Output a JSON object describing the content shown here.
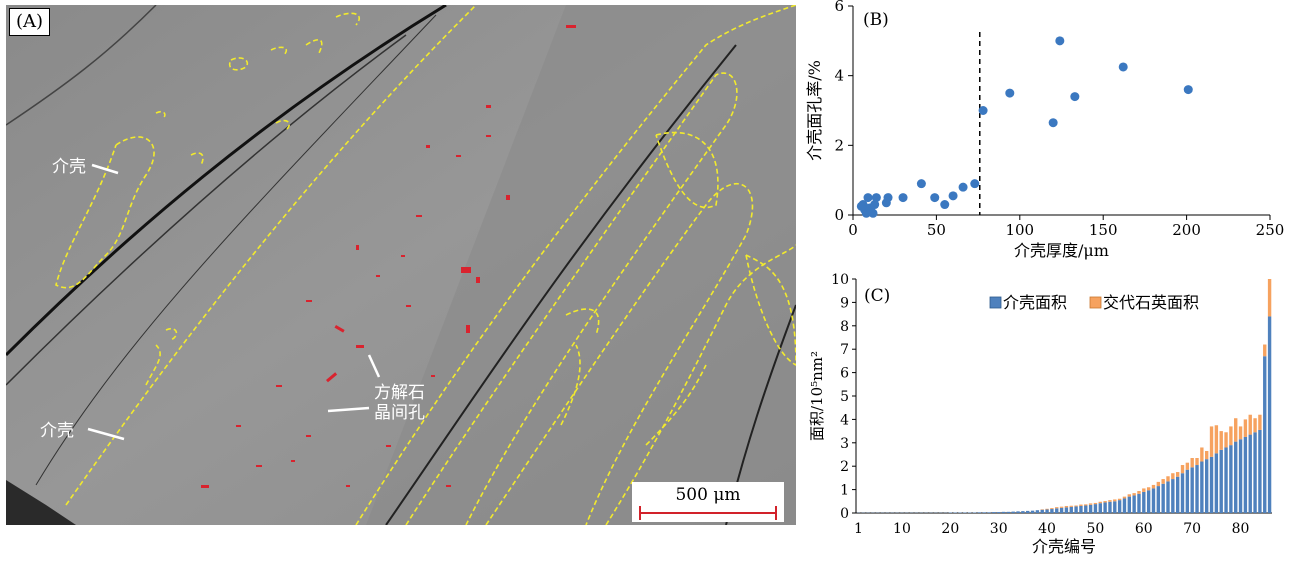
{
  "panel_a": {
    "label": "(A)",
    "annotations": {
      "shell_1": "介壳",
      "shell_2": "介壳",
      "pore_line1": "方解石",
      "pore_line2": "晶间孔"
    },
    "scale_bar": "500 μm"
  },
  "chart_data": [
    {
      "type": "scatter",
      "panel_label": "(B)",
      "xlabel": "介壳厚度/μm",
      "ylabel": "介壳面孔率/%",
      "xlim": [
        0,
        250
      ],
      "ylim": [
        0,
        6
      ],
      "xticks": [
        0,
        50,
        100,
        150,
        200,
        250
      ],
      "yticks": [
        0,
        2,
        4,
        6
      ],
      "threshold_x": 76,
      "color": "#3b78c0",
      "points": [
        [
          5,
          0.25
        ],
        [
          6,
          0.3
        ],
        [
          7,
          0.15
        ],
        [
          8,
          0.05
        ],
        [
          9,
          0.5
        ],
        [
          10,
          0.2
        ],
        [
          11,
          0.1
        ],
        [
          12,
          0.05
        ],
        [
          13,
          0.3
        ],
        [
          14,
          0.5
        ],
        [
          20,
          0.35
        ],
        [
          21,
          0.5
        ],
        [
          30,
          0.5
        ],
        [
          41,
          0.9
        ],
        [
          49,
          0.5
        ],
        [
          55,
          0.3
        ],
        [
          60,
          0.55
        ],
        [
          66,
          0.8
        ],
        [
          73,
          0.9
        ],
        [
          78,
          3.0
        ],
        [
          94,
          3.5
        ],
        [
          120,
          2.65
        ],
        [
          124,
          5.0
        ],
        [
          133,
          3.4
        ],
        [
          162,
          4.25
        ],
        [
          201,
          3.6
        ]
      ]
    },
    {
      "type": "bar",
      "stacked": true,
      "panel_label": "(C)",
      "xlabel": "介壳编号",
      "ylabel": "面积/10⁵nm²",
      "ylim": [
        0,
        10
      ],
      "yticks": [
        0,
        1,
        2,
        3,
        4,
        5,
        6,
        7,
        8,
        9,
        10
      ],
      "xticks": [
        1,
        10,
        20,
        30,
        40,
        50,
        60,
        70,
        80
      ],
      "legend_position": "top-right",
      "categories": [
        1,
        2,
        3,
        4,
        5,
        6,
        7,
        8,
        9,
        10,
        11,
        12,
        13,
        14,
        15,
        16,
        17,
        18,
        19,
        20,
        21,
        22,
        23,
        24,
        25,
        26,
        27,
        28,
        29,
        30,
        31,
        32,
        33,
        34,
        35,
        36,
        37,
        38,
        39,
        40,
        41,
        42,
        43,
        44,
        45,
        46,
        47,
        48,
        49,
        50,
        51,
        52,
        53,
        54,
        55,
        56,
        57,
        58,
        59,
        60,
        61,
        62,
        63,
        64,
        65,
        66,
        67,
        68,
        69,
        70,
        71,
        72,
        73,
        74,
        75,
        76,
        77,
        78,
        79,
        80,
        81,
        82,
        83,
        84,
        85,
        86
      ],
      "series": [
        {
          "name": "介壳面积",
          "color": "#4f81bd",
          "values": [
            0.01,
            0.01,
            0.01,
            0.01,
            0.01,
            0.01,
            0.01,
            0.01,
            0.01,
            0.01,
            0.01,
            0.01,
            0.01,
            0.01,
            0.01,
            0.01,
            0.01,
            0.01,
            0.01,
            0.02,
            0.02,
            0.02,
            0.02,
            0.02,
            0.02,
            0.03,
            0.03,
            0.03,
            0.04,
            0.04,
            0.05,
            0.05,
            0.06,
            0.07,
            0.08,
            0.09,
            0.1,
            0.12,
            0.14,
            0.15,
            0.17,
            0.2,
            0.22,
            0.24,
            0.26,
            0.28,
            0.3,
            0.32,
            0.35,
            0.38,
            0.42,
            0.45,
            0.48,
            0.5,
            0.55,
            0.62,
            0.7,
            0.75,
            0.82,
            0.9,
            0.97,
            1.05,
            1.15,
            1.25,
            1.35,
            1.45,
            1.55,
            1.7,
            1.85,
            1.95,
            2.05,
            2.2,
            2.3,
            2.4,
            2.55,
            2.7,
            2.8,
            2.9,
            3.05,
            3.15,
            3.25,
            3.35,
            3.45,
            3.55,
            6.7,
            8.4
          ]
        },
        {
          "name": "交代石英面积",
          "color": "#f6a25f",
          "values": [
            0,
            0,
            0,
            0,
            0,
            0,
            0,
            0,
            0,
            0,
            0,
            0,
            0,
            0,
            0,
            0,
            0,
            0,
            0,
            0,
            0,
            0,
            0,
            0,
            0,
            0,
            0,
            0,
            0,
            0,
            0,
            0,
            0,
            0,
            0,
            0,
            0,
            0,
            0.02,
            0.03,
            0.04,
            0.05,
            0.05,
            0.06,
            0.05,
            0.04,
            0.06,
            0.05,
            0.06,
            0.05,
            0.06,
            0.06,
            0.07,
            0.08,
            0.06,
            0.08,
            0.1,
            0.1,
            0.12,
            0.15,
            0.13,
            0.15,
            0.18,
            0.2,
            0.22,
            0.25,
            0.2,
            0.35,
            0.3,
            0.4,
            0.3,
            0.6,
            0.35,
            1.3,
            1.2,
            0.8,
            0.65,
            0.8,
            1.0,
            0.55,
            0.75,
            0.85,
            0.6,
            0.65,
            0.5,
            1.6
          ]
        }
      ]
    }
  ]
}
